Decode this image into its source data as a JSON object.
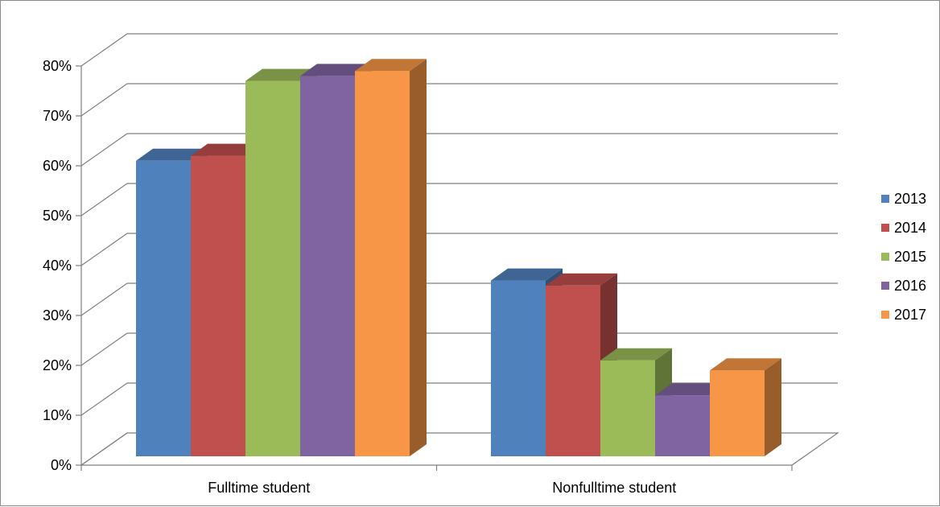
{
  "chart_data": {
    "type": "bar",
    "style": "3d-clustered-column",
    "title": "",
    "xlabel": "",
    "ylabel": "",
    "ylim": [
      0,
      80
    ],
    "yticks": [
      "0%",
      "10%",
      "20%",
      "30%",
      "40%",
      "50%",
      "60%",
      "70%",
      "80%"
    ],
    "grid": true,
    "legend_position": "right",
    "categories": [
      "Fulltime student",
      "Nonfulltime student"
    ],
    "series": [
      {
        "name": "2013",
        "color": "#4F81BD",
        "values": [
          61,
          37
        ]
      },
      {
        "name": "2014",
        "color": "#C0504D",
        "values": [
          62,
          36
        ]
      },
      {
        "name": "2015",
        "color": "#9BBB59",
        "values": [
          77,
          21
        ]
      },
      {
        "name": "2016",
        "color": "#8064A2",
        "values": [
          78,
          14
        ]
      },
      {
        "name": "2017",
        "color": "#F79646",
        "values": [
          79,
          19
        ]
      }
    ]
  }
}
